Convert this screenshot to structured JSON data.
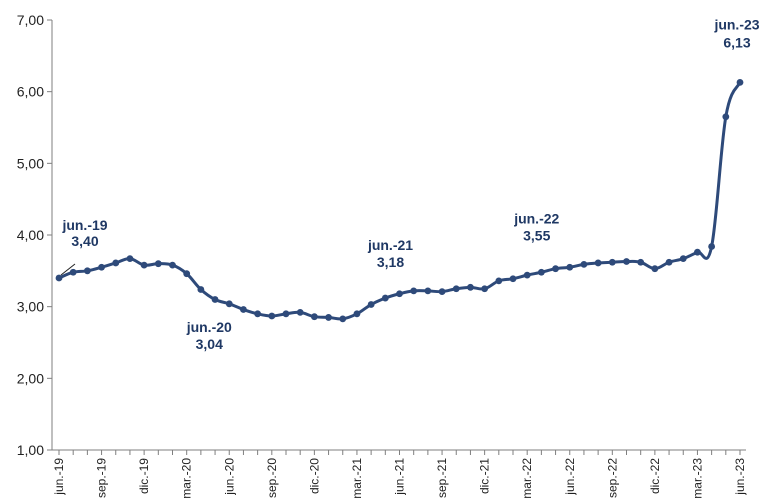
{
  "chart_data": {
    "type": "line",
    "title": "",
    "xlabel": "",
    "ylabel": "",
    "ylim": [
      1,
      7
    ],
    "y_ticks": [
      "1,00",
      "2,00",
      "3,00",
      "4,00",
      "5,00",
      "6,00",
      "7,00"
    ],
    "grid": false,
    "legend": "none",
    "line_color": "#2e4a7a",
    "annotation_color": "#1f3864",
    "x_tick_labels": [
      "jun.-19",
      "sep.-19",
      "dic.-19",
      "mar.-20",
      "jun.-20",
      "sep.-20",
      "dic.-20",
      "mar.-21",
      "jun.-21",
      "sep.-21",
      "dic.-21",
      "mar.-22",
      "jun.-22",
      "sep.-22",
      "dic.-22",
      "mar.-23",
      "jun.-23"
    ],
    "x": [
      "2019-06",
      "2019-07",
      "2019-08",
      "2019-09",
      "2019-10",
      "2019-11",
      "2019-12",
      "2020-01",
      "2020-02",
      "2020-03",
      "2020-04",
      "2020-05",
      "2020-06",
      "2020-07",
      "2020-08",
      "2020-09",
      "2020-10",
      "2020-11",
      "2020-12",
      "2021-01",
      "2021-02",
      "2021-03",
      "2021-04",
      "2021-05",
      "2021-06",
      "2021-07",
      "2021-08",
      "2021-09",
      "2021-10",
      "2021-11",
      "2021-12",
      "2022-01",
      "2022-02",
      "2022-03",
      "2022-04",
      "2022-05",
      "2022-06",
      "2022-07",
      "2022-08",
      "2022-09",
      "2022-10",
      "2022-11",
      "2022-12",
      "2023-01",
      "2023-02",
      "2023-03",
      "2023-04",
      "2023-05",
      "2023-06"
    ],
    "series": [
      {
        "values": [
          3.4,
          3.48,
          3.5,
          3.55,
          3.61,
          3.67,
          3.58,
          3.6,
          3.58,
          3.46,
          3.24,
          3.1,
          3.04,
          2.96,
          2.9,
          2.87,
          2.9,
          2.92,
          2.86,
          2.85,
          2.83,
          2.9,
          3.03,
          3.12,
          3.18,
          3.22,
          3.22,
          3.21,
          3.25,
          3.27,
          3.25,
          3.36,
          3.39,
          3.44,
          3.48,
          3.53,
          3.55,
          3.59,
          3.61,
          3.62,
          3.63,
          3.62,
          3.53,
          3.62,
          3.67,
          3.76,
          3.84,
          5.65,
          6.13
        ]
      }
    ],
    "annotations": [
      {
        "date": "jun.-19",
        "value": "3,40"
      },
      {
        "date": "jun.-20",
        "value": "3,04"
      },
      {
        "date": "jun.-21",
        "value": "3,18"
      },
      {
        "date": "jun.-22",
        "value": "3,55"
      },
      {
        "date": "jun.-23",
        "value": "6,13"
      }
    ]
  }
}
